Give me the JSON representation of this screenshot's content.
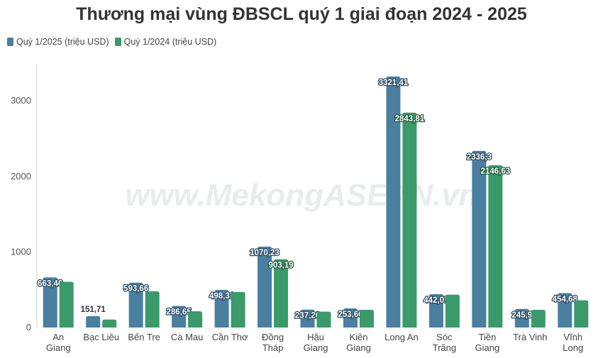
{
  "chart_data": {
    "type": "bar",
    "title": "Thương mại vùng ĐBSCL quý 1 giai đoạn 2024 - 2025",
    "categories": [
      [
        "An",
        "Giang"
      ],
      [
        "Bạc Liêu"
      ],
      [
        "Bến Tre"
      ],
      [
        "Cà Mau"
      ],
      [
        "Cần Thơ"
      ],
      [
        "Đồng",
        "Tháp"
      ],
      [
        "Hậu",
        "Giang"
      ],
      [
        "Kiên",
        "Giang"
      ],
      [
        "Long An"
      ],
      [
        "Sóc",
        "Trăng"
      ],
      [
        "Tiền",
        "Giang"
      ],
      [
        "Trà Vinh"
      ],
      [
        "Vĩnh",
        "Long"
      ]
    ],
    "series": [
      {
        "name": "Quý 1/2025 (triệu USD)",
        "color": "#4a7fa0",
        "values": [
          663.46,
          151.71,
          593.66,
          286.65,
          498.31,
          1070.23,
          237.26,
          253.66,
          3321.41,
          442.07,
          2336.3,
          245.9,
          454.68
        ],
        "labels": [
          "663,46",
          "151,71",
          "593,66",
          "286,65",
          "498,31",
          "1070,23",
          "237,26",
          "253,66",
          "3321,41",
          "442,07",
          "2336,3",
          "245,9",
          "454,68"
        ]
      },
      {
        "name": "Quý 1/2024 (triệu USD)",
        "color": "#3a9a6a",
        "values": [
          605,
          105,
          480,
          215,
          470,
          903.19,
          210,
          235,
          2843.81,
          435,
          2146.63,
          235,
          360
        ],
        "labels": [
          "",
          "",
          "",
          "",
          "",
          "903,19",
          "",
          "",
          "2843,81",
          "",
          "2146,63",
          "",
          ""
        ]
      }
    ],
    "y_ticks": [
      0,
      1000,
      2000,
      3000
    ],
    "ylim": [
      0,
      3330
    ],
    "grid": false,
    "legend_position": "top-left",
    "watermark": "www.MekongASEAN.vn"
  }
}
